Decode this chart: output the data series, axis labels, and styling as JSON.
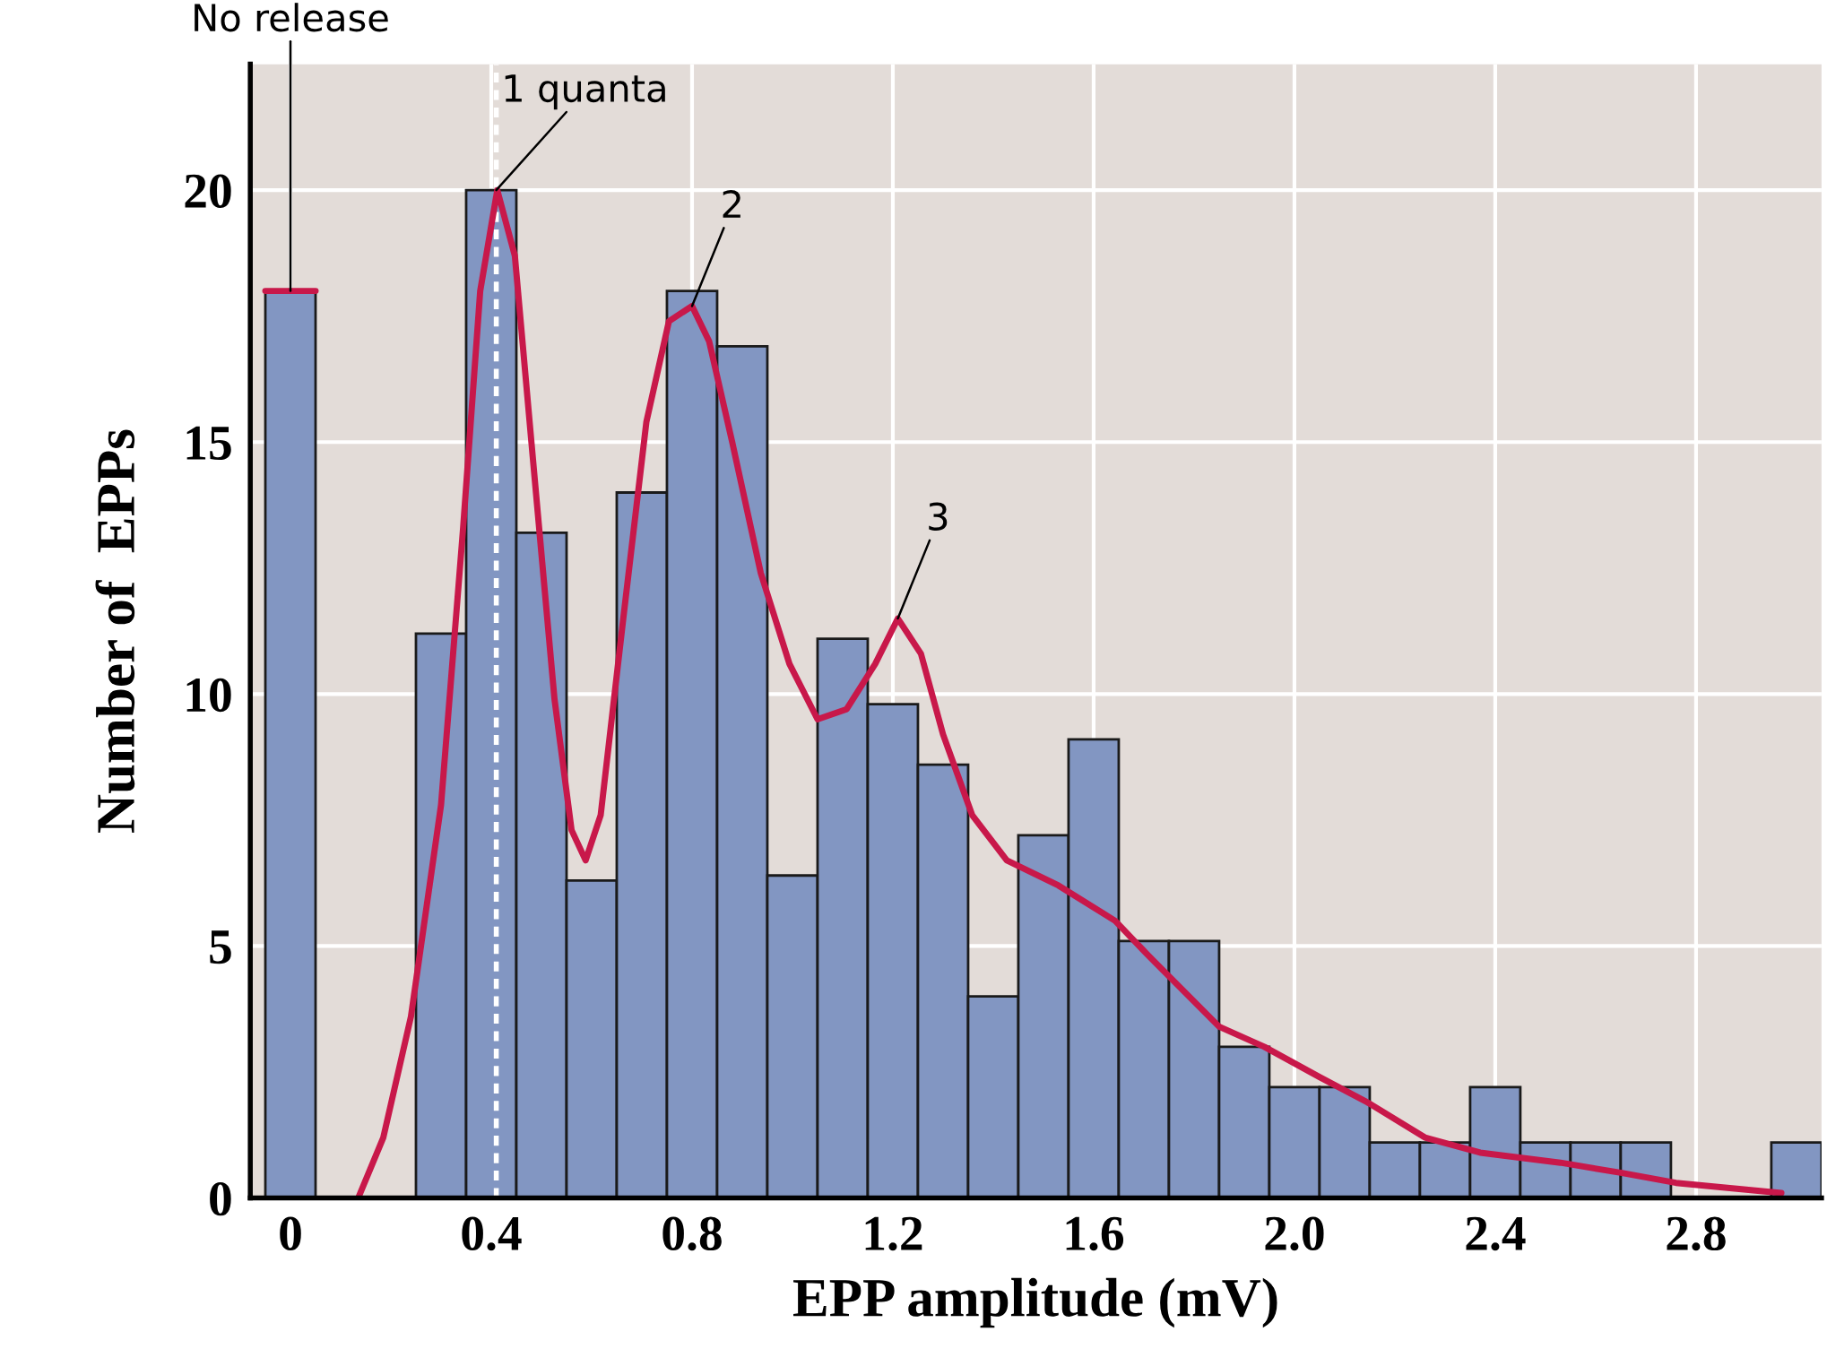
{
  "chart_data": {
    "type": "histogram",
    "xlabel": "EPP amplitude (mV)",
    "ylabel": "Number of  EPPs",
    "bins": [
      -0.05,
      0.05,
      0.15,
      0.25,
      0.35,
      0.45,
      0.55,
      0.65,
      0.75,
      0.85,
      0.95,
      1.05,
      1.15,
      1.25,
      1.35,
      1.45,
      1.55,
      1.65,
      1.75,
      1.85,
      1.95,
      2.05,
      2.15,
      2.25,
      2.35,
      2.45,
      2.55,
      2.65,
      2.75,
      2.85,
      2.95,
      3.05
    ],
    "values": [
      18,
      0,
      0,
      11.2,
      20,
      13.2,
      6.3,
      14,
      18,
      16.9,
      6.4,
      11.1,
      9.8,
      8.6,
      4.0,
      7.2,
      9.1,
      5.1,
      5.1,
      3.0,
      2.2,
      2.2,
      1.1,
      1.1,
      2.2,
      1.1,
      1.1,
      1.1,
      0,
      0,
      1.1
    ],
    "color": "#8296c2",
    "series": [
      {
        "type": "line",
        "color": "#c8184a",
        "x": [
          0.135,
          0.185,
          0.24,
          0.3,
          0.344,
          0.378,
          0.412,
          0.447,
          0.48,
          0.526,
          0.56,
          0.588,
          0.618,
          0.663,
          0.709,
          0.754,
          0.8,
          0.834,
          0.88,
          0.937,
          0.994,
          1.05,
          1.108,
          1.165,
          1.21,
          1.256,
          1.3,
          1.358,
          1.427,
          1.53,
          1.643,
          1.71,
          1.85,
          1.94,
          2.05,
          2.145,
          2.26,
          2.37,
          2.53,
          2.65,
          2.76,
          2.97
        ],
        "values": [
          0,
          1.2,
          3.6,
          7.8,
          13.3,
          18.0,
          20.0,
          18.7,
          15.0,
          9.9,
          7.3,
          6.7,
          7.6,
          11.5,
          15.4,
          17.4,
          17.7,
          17.0,
          15.0,
          12.4,
          10.6,
          9.5,
          9.7,
          10.6,
          11.5,
          10.8,
          9.2,
          7.6,
          6.7,
          6.2,
          5.5,
          4.8,
          3.4,
          3.0,
          2.4,
          1.9,
          1.2,
          0.9,
          0.7,
          0.5,
          0.3,
          0.1
        ]
      },
      {
        "type": "line",
        "color": "#c8184a",
        "x": [
          -0.05,
          0.05
        ],
        "values": [
          18,
          18
        ]
      }
    ],
    "ref_lines": [
      {
        "axis": "x",
        "value": 0.41,
        "label": null,
        "color": "#ffffff",
        "line_style": "dashed"
      }
    ],
    "annotations": [
      {
        "text": "No release",
        "x": 0,
        "y": 18
      },
      {
        "text": "1 quanta",
        "x": 0.41,
        "y": 20
      },
      {
        "text": "2",
        "x": 0.8,
        "y": 17.7
      },
      {
        "text": "3",
        "x": 1.21,
        "y": 11.5
      }
    ],
    "xlim": [
      -0.08,
      3.05
    ],
    "ylim": [
      0,
      22.5
    ],
    "xticks": [
      0,
      0.4,
      0.8,
      1.2,
      1.6,
      {
        "value": 2.0,
        "label": "2.0"
      },
      2.4,
      2.8
    ],
    "yticks": [
      0,
      5,
      10,
      15,
      20
    ],
    "grid": true,
    "legend": false
  }
}
